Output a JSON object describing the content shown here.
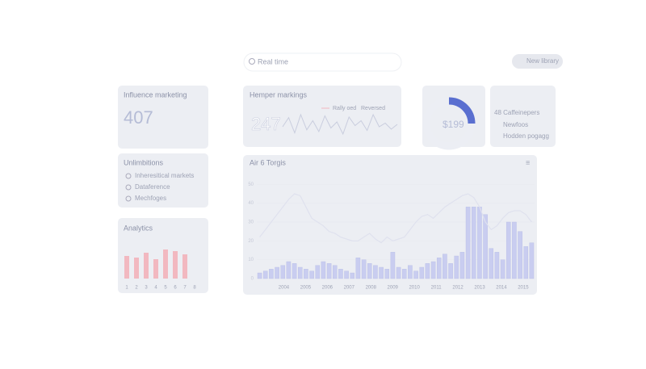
{
  "search": {
    "placeholder": "Real time"
  },
  "button": {
    "label": "New library"
  },
  "cards": {
    "influence": {
      "title": "Influence marketing",
      "value": "407"
    },
    "hemper": {
      "title": "Hemper markings",
      "legend": [
        "Rally oed",
        "Reversed"
      ],
      "value": "247",
      "spark": [
        20,
        35,
        10,
        40,
        15,
        30,
        12,
        38,
        18,
        28,
        8,
        36,
        22,
        30,
        14,
        40,
        20,
        26,
        16,
        24
      ]
    },
    "donut": {
      "label": "$199",
      "values": [
        25,
        75
      ],
      "colors": [
        "#5a6fd0",
        "#eceef4"
      ]
    },
    "list": {
      "items": [
        "48 Caffeinepers",
        "Newfoos",
        "Hodden pogagg"
      ]
    },
    "checklist": {
      "title": "Unlimbitions",
      "items": [
        "Inheresitical markets",
        "Dataference",
        "Mechfoges"
      ]
    },
    "analytics": {
      "title": "Analytics",
      "color": "#f2b8c0",
      "ylim": [
        0,
        50
      ],
      "categories": [
        "1",
        "2",
        "3",
        "4",
        "5",
        "6",
        "7",
        "8"
      ],
      "values": [
        28,
        26,
        32,
        24,
        36,
        34,
        30,
        0
      ]
    }
  },
  "chart_data": {
    "type": "bar",
    "title": "Air 6 Torgis",
    "color": "#c9cdf0",
    "line_color": "#dfe1ee",
    "ylim": [
      0,
      60
    ],
    "yticks": [
      0,
      10,
      20,
      30,
      40,
      50
    ],
    "values": [
      3,
      4,
      5,
      6,
      7,
      9,
      8,
      6,
      5,
      4,
      7,
      9,
      8,
      7,
      5,
      4,
      3,
      11,
      10,
      8,
      7,
      6,
      5,
      14,
      6,
      5,
      7,
      4,
      6,
      8,
      9,
      11,
      13,
      8,
      12,
      14,
      38,
      38,
      38,
      34,
      16,
      14,
      10,
      30,
      30,
      25,
      17,
      19
    ],
    "line": [
      22,
      26,
      30,
      34,
      38,
      42,
      45,
      44,
      38,
      32,
      30,
      28,
      25,
      24,
      22,
      21,
      20,
      20,
      22,
      24,
      21,
      19,
      22,
      20,
      21,
      22,
      26,
      30,
      33,
      34,
      32,
      35,
      38,
      40,
      42,
      44,
      45,
      43,
      38,
      30,
      26,
      28,
      32,
      35,
      36,
      36,
      34,
      30
    ],
    "x_labels": [
      "2004",
      "2005",
      "2006",
      "2007",
      "2008",
      "2009",
      "2010",
      "2011",
      "2012",
      "2013",
      "2014",
      "2015"
    ]
  }
}
